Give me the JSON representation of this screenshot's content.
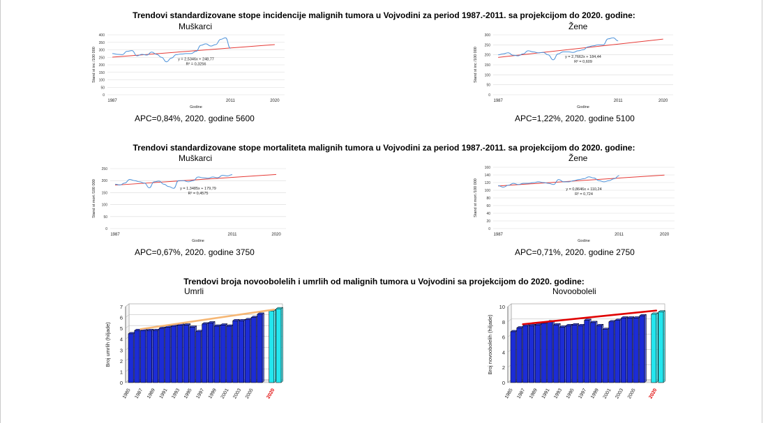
{
  "incidence": {
    "title": "Trendovi standardizovane stope incidencije malignih tumora u Vojvodini za period 1987.-2011. sa projekcijom do 2020. godine:",
    "men": {
      "label": "Muškarci",
      "apc": "APC=0,84%, 2020. godine 5600",
      "chart": {
        "type": "line",
        "ylabel": "Stand st inc /100 000",
        "xlabel": "Godine",
        "ylim": [
          0,
          400
        ],
        "yticks": [
          "0",
          "50",
          "100",
          "150",
          "200",
          "250",
          "300",
          "350",
          "400"
        ],
        "xticks": [
          "1987",
          "2011",
          "2020"
        ],
        "x": [
          1987,
          1988,
          1989,
          1990,
          1991,
          1992,
          1993,
          1994,
          1995,
          1996,
          1997,
          1998,
          1999,
          2000,
          2001,
          2002,
          2003,
          2004,
          2005,
          2006,
          2007,
          2008,
          2009,
          2010,
          2011
        ],
        "values": [
          275,
          270,
          268,
          290,
          295,
          260,
          270,
          265,
          285,
          270,
          250,
          220,
          245,
          268,
          272,
          275,
          275,
          290,
          330,
          340,
          325,
          335,
          370,
          380,
          310
        ],
        "trend": {
          "slope": 2.5346,
          "intercept": 248.77,
          "x_end": 2020
        },
        "equation": "y = 2,5346x + 248,77",
        "r2": "R² = 0,3256"
      }
    },
    "women": {
      "label": "Žene",
      "apc": "APC=1,22%, 2020. godine 5100",
      "chart": {
        "type": "line",
        "ylabel": "Stand st inc /100 000",
        "xlabel": "Godine",
        "ylim": [
          0,
          300
        ],
        "yticks": [
          "0",
          "50",
          "100",
          "150",
          "200",
          "250",
          "300"
        ],
        "xticks": [
          "1987",
          "2011",
          "2020"
        ],
        "x": [
          1987,
          1988,
          1989,
          1990,
          1991,
          1992,
          1993,
          1994,
          1995,
          1996,
          1997,
          1998,
          1999,
          2000,
          2001,
          2002,
          2003,
          2004,
          2005,
          2006,
          2007,
          2008,
          2009,
          2010,
          2011
        ],
        "values": [
          200,
          205,
          210,
          198,
          195,
          205,
          220,
          215,
          210,
          212,
          200,
          175,
          205,
          215,
          215,
          212,
          220,
          225,
          240,
          245,
          250,
          250,
          280,
          285,
          270
        ],
        "trend": {
          "slope": 2.7662,
          "intercept": 184.44,
          "x_end": 2020
        },
        "equation": "y = 2,7662x + 184,44",
        "r2": "R² = 0,609"
      }
    }
  },
  "mortality": {
    "title": "Trendovi standardizovane stope mortaliteta malignih tumora u Vojvodini za period 1987.-2011. sa projekcijom do 2020. godine:",
    "men": {
      "label": "Muškarci",
      "apc": "APC=0,67%, 2020. godine 3750",
      "chart": {
        "type": "line",
        "ylabel": "Stand st mort /100 000",
        "xlabel": "Godine",
        "ylim": [
          0,
          250
        ],
        "yticks": [
          "0",
          "50",
          "100",
          "150",
          "200",
          "250"
        ],
        "xticks": [
          "1987",
          "2011",
          "2020"
        ],
        "x": [
          1987,
          1988,
          1989,
          1990,
          1991,
          1992,
          1993,
          1994,
          1995,
          1996,
          1997,
          1998,
          1999,
          2000,
          2001,
          2002,
          2003,
          2004,
          2005,
          2006,
          2007,
          2008,
          2009,
          2010,
          2011
        ],
        "values": [
          185,
          182,
          190,
          205,
          200,
          195,
          190,
          170,
          195,
          198,
          185,
          175,
          168,
          200,
          200,
          195,
          200,
          215,
          212,
          210,
          215,
          212,
          222,
          220,
          225
        ],
        "trend": {
          "slope": 1.3485,
          "intercept": 179.79,
          "x_end": 2020
        },
        "equation": "y = 1,3485x + 179,79",
        "r2": "R² = 0,4575"
      }
    },
    "women": {
      "label": "Žene",
      "apc": "APC=0,71%, 2020. godine 2750",
      "chart": {
        "type": "line",
        "ylabel": "Stand st mort /100 000",
        "xlabel": "Godine",
        "ylim": [
          0,
          160
        ],
        "yticks": [
          "0",
          "20",
          "40",
          "60",
          "80",
          "100",
          "120",
          "140",
          "160"
        ],
        "xticks": [
          "1987",
          "2011",
          "2020"
        ],
        "x": [
          1987,
          1988,
          1989,
          1990,
          1991,
          1992,
          1993,
          1994,
          1995,
          1996,
          1997,
          1998,
          1999,
          2000,
          2001,
          2002,
          2003,
          2004,
          2005,
          2006,
          2007,
          2008,
          2009,
          2010,
          2011
        ],
        "values": [
          112,
          108,
          113,
          118,
          115,
          118,
          118,
          120,
          122,
          120,
          118,
          115,
          128,
          122,
          122,
          125,
          128,
          130,
          135,
          132,
          125,
          122,
          125,
          130,
          138
        ],
        "trend": {
          "slope": 0.8646,
          "intercept": 110.24,
          "x_end": 2020
        },
        "equation": "y = 0,8646x + 110,24",
        "r2": "R² = 0,724"
      }
    }
  },
  "counts": {
    "title": "Trendovi broja novoobolelih i umrlih od malignih tumora u Vojvodini sa projekcijom do 2020. godine:",
    "deaths": {
      "label": "Umrli",
      "chart": {
        "type": "bar",
        "ylabel": "Broj umrlih (hiljade)",
        "ylim": [
          0,
          7
        ],
        "yticks": [
          "0",
          "1",
          "2",
          "3",
          "4",
          "5",
          "6",
          "7"
        ],
        "categories": [
          "1985",
          "1986",
          "1987",
          "1988",
          "1989",
          "1990",
          "1991",
          "1992",
          "1993",
          "1994",
          "1995",
          "1996",
          "1997",
          "1998",
          "1999",
          "2000",
          "2001",
          "2002",
          "2003",
          "2004",
          "2005",
          "2006"
        ],
        "tick_labels": [
          "1985",
          "1987",
          "1989",
          "1991",
          "1993",
          "1995",
          "1997",
          "1999",
          "2001",
          "2003",
          "2005"
        ],
        "values": [
          4.5,
          4.8,
          4.8,
          4.8,
          4.8,
          5.0,
          5.1,
          5.2,
          5.3,
          5.3,
          5.1,
          4.7,
          5.4,
          5.5,
          5.2,
          5.3,
          5.2,
          5.7,
          5.7,
          5.8,
          6.0,
          6.3
        ],
        "projection": {
          "label": "2020",
          "values": [
            6.6,
            6.8
          ]
        },
        "trend": {
          "from": 4.8,
          "to": 6.6
        },
        "colors": {
          "bar": "#1c2cd6",
          "projection": "#24e6ee",
          "trend": "#f6b774",
          "tick_highlight": "#e00000"
        }
      }
    },
    "incidence": {
      "label": "Novooboleli",
      "chart": {
        "type": "bar",
        "ylabel": "Broj novoobolelih (hiljade)",
        "ylim": [
          0,
          10
        ],
        "yticks": [
          "0",
          "2",
          "4",
          "6",
          "8",
          "10"
        ],
        "categories": [
          "1985",
          "1986",
          "1987",
          "1988",
          "1989",
          "1990",
          "1991",
          "1992",
          "1993",
          "1994",
          "1995",
          "1996",
          "1997",
          "1998",
          "1999",
          "2000",
          "2001",
          "2002",
          "2003",
          "2004",
          "2005",
          "2006"
        ],
        "tick_labels": [
          "1985",
          "1987",
          "1989",
          "1991",
          "1993",
          "1995",
          "1997",
          "1999",
          "2001",
          "2003",
          "2005"
        ],
        "values": [
          6.7,
          7.2,
          7.5,
          7.5,
          7.6,
          7.8,
          8.0,
          7.6,
          7.3,
          7.5,
          7.6,
          7.5,
          8.2,
          7.9,
          7.5,
          7.0,
          8.0,
          8.2,
          8.5,
          8.5,
          8.5,
          8.8
        ],
        "projection": {
          "label": "2020",
          "values": [
            9.0,
            9.3
          ]
        },
        "trend": {
          "from": 7.5,
          "to": 9.3
        },
        "colors": {
          "bar": "#1c2cd6",
          "projection": "#24e6ee",
          "trend": "#e00000",
          "tick_highlight": "#e00000"
        }
      }
    }
  }
}
